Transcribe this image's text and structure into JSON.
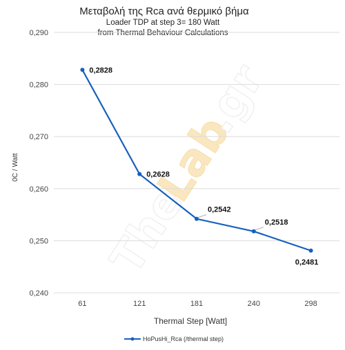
{
  "chart_data": {
    "type": "line",
    "title": "Μεταβολή της Rca ανά θερμικό βήμα",
    "subtitle_lines": [
      "Loader TDP at step 3= 180 Watt",
      "from Thermal Behaviour Calculations"
    ],
    "xlabel": "Thermal Step [Watt]",
    "ylabel": "0C / Watt",
    "categories": [
      "61",
      "121",
      "181",
      "240",
      "298"
    ],
    "series": [
      {
        "name": "HoPusHi_Rca (/thermal step)",
        "values": [
          0.2828,
          0.2628,
          0.2542,
          0.2518,
          0.2481
        ],
        "labels": [
          "0,2828",
          "0,2628",
          "0,2542",
          "0,2518",
          "0,2481"
        ]
      }
    ],
    "ylim": [
      0.24,
      0.29
    ],
    "yticks": [
      0.29,
      0.28,
      0.27,
      0.26,
      0.25,
      0.24
    ],
    "ytick_labels": [
      "0,290",
      "0,280",
      "0,270",
      "0,260",
      "0,250",
      "0,240"
    ],
    "grid": true,
    "legend_position": "bottom",
    "colors": {
      "line": "#1560bd",
      "grid": "#dcdcdc",
      "watermark": "#f3d9a2"
    }
  },
  "watermark": {
    "text_the": "The",
    "text_lab": "Lab",
    "text_gr": ".gr"
  }
}
